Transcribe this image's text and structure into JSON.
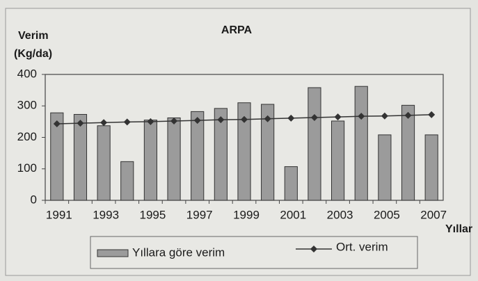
{
  "chart_data": {
    "type": "bar",
    "title": "ARPA",
    "y_label": [
      "Verim",
      "(Kg/da)"
    ],
    "x_label": "Yıllar",
    "categories": [
      "1991",
      null,
      "1993",
      null,
      "1995",
      null,
      "1997",
      null,
      "1999",
      null,
      "2001",
      null,
      "2003",
      null,
      "2005",
      null,
      "2007"
    ],
    "series": [
      {
        "name": "Yıllara göre verim",
        "type": "bar",
        "color": "#9b9b9b",
        "values": [
          278,
          273,
          237,
          123,
          255,
          262,
          282,
          292,
          310,
          305,
          107,
          358,
          252,
          362,
          208,
          302,
          208
        ]
      },
      {
        "name": "Ort. verim",
        "type": "line",
        "color": "#333333",
        "values": [
          243,
          245,
          247,
          249,
          250,
          252,
          254,
          256,
          257,
          259,
          261,
          263,
          265,
          267,
          268,
          270,
          272
        ]
      }
    ],
    "ylim": [
      0,
      400
    ],
    "yticks": [
      0,
      100,
      200,
      300,
      400
    ],
    "grid": false
  }
}
